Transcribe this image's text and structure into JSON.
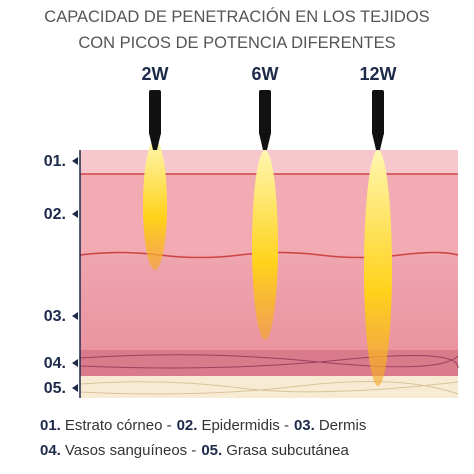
{
  "header": {
    "title": [
      "CAPACIDAD DE PENETRACIÓN EN LOS TEJIDOS",
      "CON PICOS DE POTENCIA DIFERENTES"
    ]
  },
  "probes": [
    "2W",
    "6W",
    "12W"
  ],
  "layers": [
    "01.",
    "02.",
    "03.",
    "04.",
    "05."
  ],
  "legend": [
    [
      {
        "num": "01.",
        "name": "Estrato córneo -"
      },
      {
        "num": "02.",
        "name": "Epidermidis -"
      },
      {
        "num": "03.",
        "name": "Dermis"
      }
    ],
    [
      {
        "num": "04.",
        "name": "Vasos sanguíneos -"
      },
      {
        "num": "05.",
        "name": "Grasa subcutánea"
      }
    ]
  ]
}
